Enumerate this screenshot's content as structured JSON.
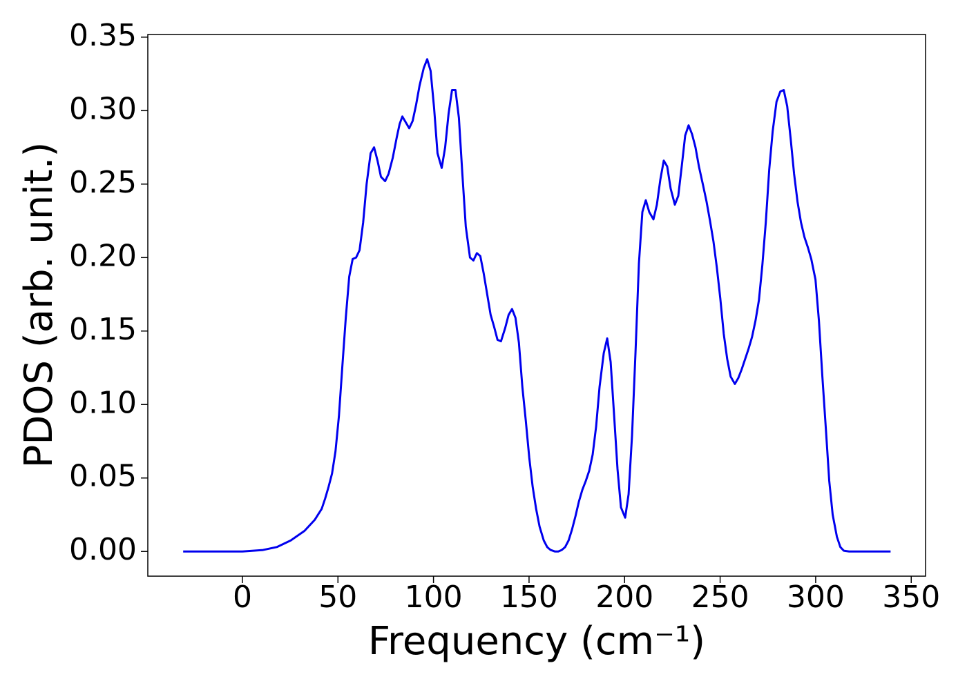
{
  "chart_data": {
    "type": "line",
    "xlabel": "Frequency (cm⁻¹)",
    "ylabel": "PDOS (arb. unit.)",
    "xlim": [
      -49.5,
      357.5
    ],
    "ylim": [
      -0.0168,
      0.3518
    ],
    "xticks": [
      0,
      50,
      100,
      150,
      200,
      250,
      300,
      350
    ],
    "yticks": [
      {
        "value": 0,
        "label": "0.00"
      },
      0.05,
      {
        "value": 0.1,
        "label": "0.10"
      },
      0.15,
      {
        "value": 0.2,
        "label": "0.20"
      },
      0.25,
      {
        "value": 0.3,
        "label": "0.30"
      },
      0.35
    ],
    "grid": false,
    "series": [
      {
        "color": "#0000ee",
        "x": [
          -31,
          0,
          10.8,
          18,
          25.3,
          32.5,
          37.9,
          41.5,
          43.3,
          45.1,
          46.9,
          48.7,
          50.5,
          52.3,
          54.1,
          55.9,
          57.7,
          59.5,
          61.3,
          63.2,
          65,
          67.1,
          68.9,
          70.7,
          72.5,
          74.7,
          76.5,
          78.7,
          80.8,
          82.3,
          83.7,
          85.5,
          87.3,
          89.1,
          90.9,
          92.7,
          94.9,
          96.7,
          98.5,
          100.3,
          102.1,
          104.3,
          106.1,
          107.9,
          109.7,
          111.5,
          113.3,
          115.1,
          116.9,
          119.1,
          120.9,
          122.7,
          124.5,
          126.3,
          128.1,
          129.9,
          131.7,
          133.5,
          135.3,
          137.5,
          139.3,
          141.1,
          142.9,
          144.7,
          146.5,
          148.3,
          150.1,
          151.9,
          153.7,
          155.5,
          157.7,
          159.5,
          161.3,
          163.5,
          165.3,
          167.1,
          168.9,
          170.7,
          172.5,
          174.3,
          176.1,
          177.9,
          179.7,
          181.5,
          183.3,
          185.1,
          186.9,
          189.1,
          190.9,
          192.7,
          194.5,
          196.3,
          198.1,
          200.3,
          202.1,
          203.9,
          205.7,
          207.5,
          209.3,
          211.1,
          212.9,
          215.1,
          216.9,
          218.7,
          220.5,
          222.3,
          224.1,
          226.3,
          228.1,
          229.9,
          231.7,
          233.5,
          235.3,
          237.1,
          238.9,
          241.1,
          242.9,
          244.7,
          246.5,
          248.3,
          250.1,
          251.9,
          253.7,
          255.5,
          257.7,
          259.5,
          261.3,
          263.1,
          264.9,
          266.7,
          268.5,
          270.3,
          272.1,
          273.9,
          275.7,
          277.5,
          279.5,
          281.5,
          283.3,
          285.1,
          286.9,
          288.7,
          290.5,
          292.3,
          294.1,
          295.9,
          297.7,
          299.9,
          301.7,
          303.5,
          305.3,
          307.1,
          308.9,
          311.1,
          312.9,
          314.7,
          317.5,
          339.2
        ],
        "values": [
          0,
          0,
          0.001,
          0.003,
          0.0075,
          0.014,
          0.0216,
          0.029,
          0.036,
          0.044,
          0.053,
          0.068,
          0.092,
          0.126,
          0.159,
          0.187,
          0.199,
          0.2,
          0.205,
          0.224,
          0.25,
          0.271,
          0.275,
          0.266,
          0.255,
          0.252,
          0.257,
          0.268,
          0.282,
          0.291,
          0.296,
          0.292,
          0.288,
          0.293,
          0.304,
          0.317,
          0.329,
          0.335,
          0.327,
          0.302,
          0.271,
          0.261,
          0.275,
          0.298,
          0.314,
          0.314,
          0.295,
          0.257,
          0.221,
          0.2,
          0.198,
          0.203,
          0.201,
          0.189,
          0.175,
          0.161,
          0.153,
          0.144,
          0.143,
          0.152,
          0.161,
          0.165,
          0.159,
          0.142,
          0.112,
          0.089,
          0.064,
          0.044,
          0.029,
          0.017,
          0.0075,
          0.003,
          0.001,
          0,
          0,
          0.001,
          0.003,
          0.0075,
          0.015,
          0.024,
          0.034,
          0.042,
          0.048,
          0.055,
          0.066,
          0.085,
          0.112,
          0.135,
          0.145,
          0.129,
          0.093,
          0.056,
          0.03,
          0.023,
          0.039,
          0.079,
          0.135,
          0.196,
          0.231,
          0.239,
          0.231,
          0.226,
          0.236,
          0.253,
          0.266,
          0.262,
          0.247,
          0.236,
          0.242,
          0.262,
          0.283,
          0.29,
          0.284,
          0.275,
          0.262,
          0.249,
          0.238,
          0.225,
          0.211,
          0.193,
          0.172,
          0.148,
          0.131,
          0.119,
          0.114,
          0.118,
          0.124,
          0.131,
          0.138,
          0.146,
          0.157,
          0.171,
          0.195,
          0.224,
          0.26,
          0.286,
          0.306,
          0.313,
          0.314,
          0.303,
          0.281,
          0.257,
          0.238,
          0.224,
          0.214,
          0.207,
          0.199,
          0.185,
          0.157,
          0.119,
          0.084,
          0.048,
          0.025,
          0.01,
          0.003,
          0.0005,
          0,
          0
        ]
      }
    ]
  }
}
